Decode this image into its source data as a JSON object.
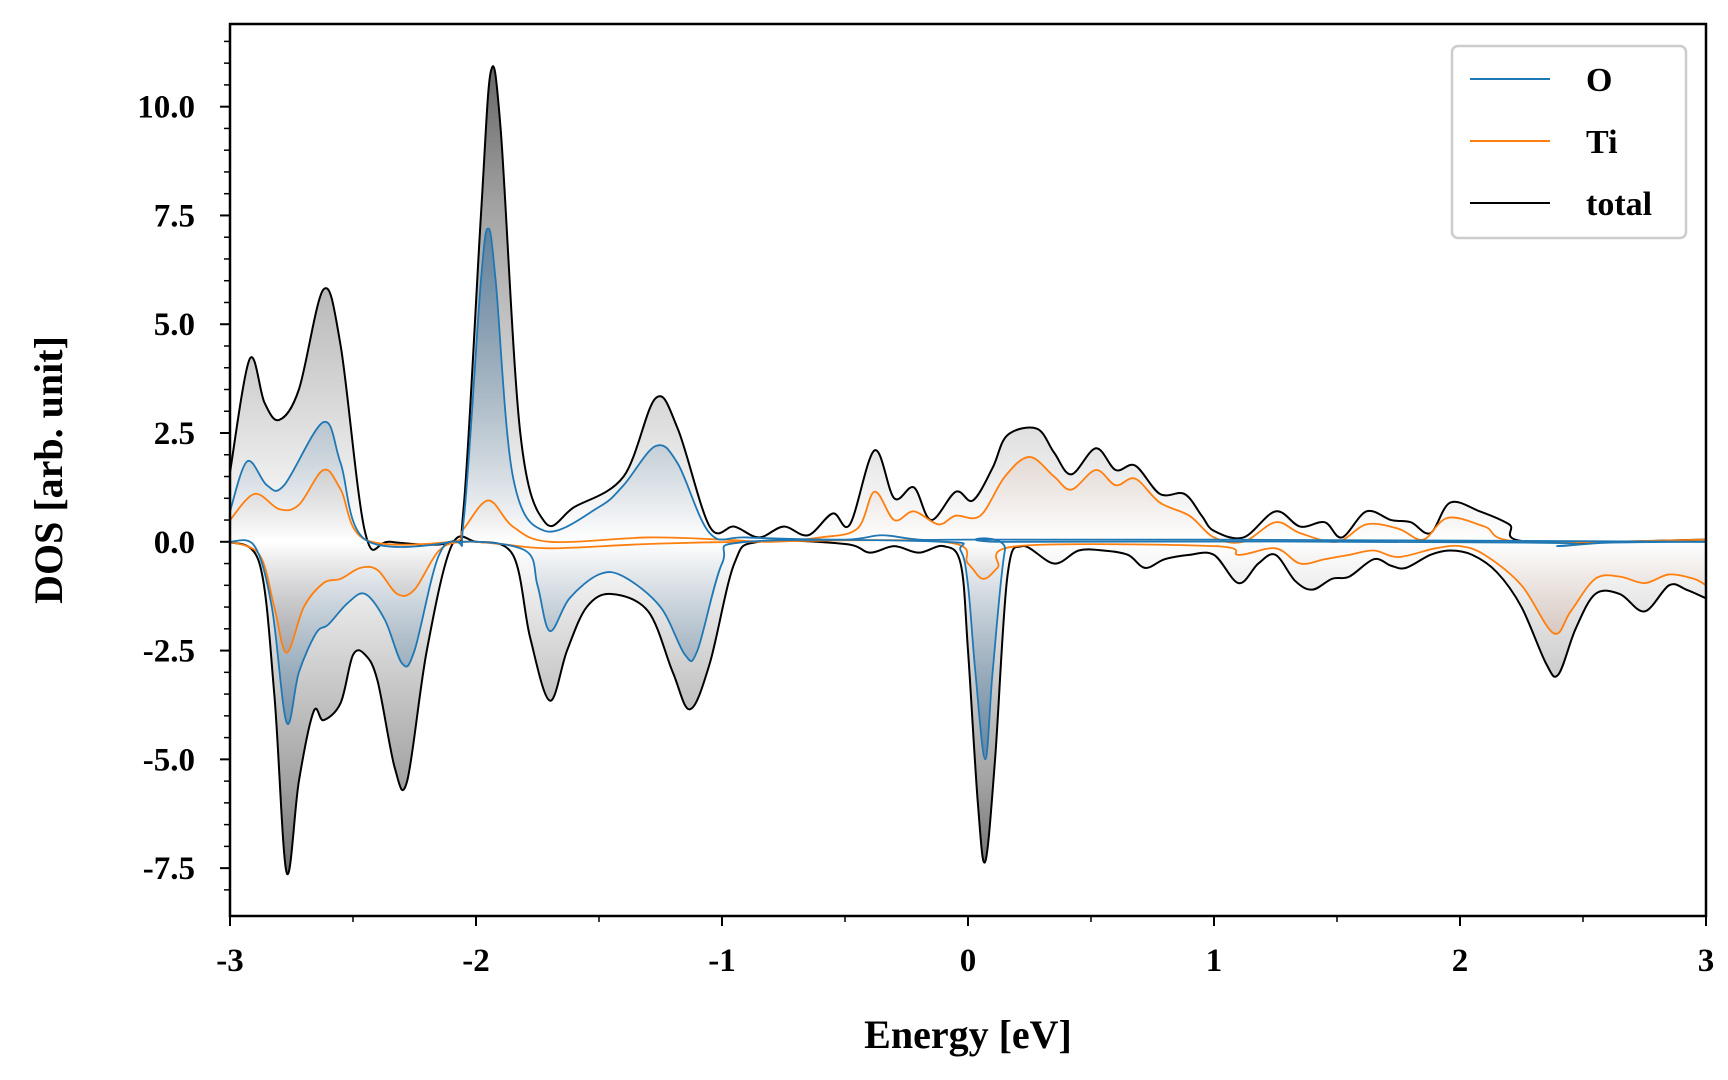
{
  "chart_data": {
    "type": "line",
    "title": "",
    "xlabel": "Energy [eV]",
    "ylabel": "DOS [arb. unit]",
    "xlim": [
      -3,
      3
    ],
    "ylim": [
      -8.6,
      11.9
    ],
    "x_ticks": [
      -3,
      -2,
      -1,
      0,
      1,
      2,
      3
    ],
    "x_tick_labels": [
      "-3",
      "-2",
      "-1",
      "0",
      "1",
      "2",
      "3"
    ],
    "y_ticks": [
      -7.5,
      -5.0,
      -2.5,
      0.0,
      2.5,
      5.0,
      7.5,
      10.0
    ],
    "y_tick_labels": [
      "-7.5",
      "-5.0",
      "-2.5",
      "0.0",
      "2.5",
      "5.0",
      "7.5",
      "10.0"
    ],
    "legend_position": "top-right",
    "grid": false,
    "series": [
      {
        "name": "O",
        "color": "#1f77b4",
        "fill_color": "#1f5f94",
        "up": [
          [
            -3,
            0.7
          ],
          [
            -2.93,
            1.85
          ],
          [
            -2.85,
            1.3
          ],
          [
            -2.78,
            1.3
          ],
          [
            -2.62,
            2.75
          ],
          [
            -2.55,
            1.8
          ],
          [
            -2.45,
            0.05
          ],
          [
            -2.1,
            0.0
          ],
          [
            -2.05,
            0.5
          ],
          [
            -1.98,
            6.0
          ],
          [
            -1.95,
            7.2
          ],
          [
            -1.92,
            6.0
          ],
          [
            -1.85,
            1.5
          ],
          [
            -1.72,
            0.25
          ],
          [
            -1.5,
            0.8
          ],
          [
            -1.4,
            1.3
          ],
          [
            -1.27,
            2.2
          ],
          [
            -1.18,
            1.8
          ],
          [
            -1.05,
            0.2
          ],
          [
            -0.9,
            0.1
          ],
          [
            -0.5,
            0.05
          ],
          [
            -0.35,
            0.15
          ],
          [
            -0.2,
            0.05
          ],
          [
            0.0,
            0.05
          ],
          [
            1.0,
            0.05
          ],
          [
            3,
            0.0
          ]
        ],
        "down": [
          [
            -3,
            0.0
          ],
          [
            -2.9,
            -0.1
          ],
          [
            -2.83,
            -1.5
          ],
          [
            -2.77,
            -4.15
          ],
          [
            -2.72,
            -3.0
          ],
          [
            -2.65,
            -2.1
          ],
          [
            -2.6,
            -1.9
          ],
          [
            -2.52,
            -1.4
          ],
          [
            -2.45,
            -1.2
          ],
          [
            -2.37,
            -1.8
          ],
          [
            -2.3,
            -2.8
          ],
          [
            -2.25,
            -2.5
          ],
          [
            -2.15,
            -0.3
          ],
          [
            -2.05,
            0.0
          ],
          [
            -1.8,
            -0.2
          ],
          [
            -1.75,
            -1.0
          ],
          [
            -1.7,
            -2.05
          ],
          [
            -1.62,
            -1.3
          ],
          [
            -1.5,
            -0.75
          ],
          [
            -1.4,
            -0.8
          ],
          [
            -1.25,
            -1.5
          ],
          [
            -1.15,
            -2.6
          ],
          [
            -1.1,
            -2.5
          ],
          [
            -1.0,
            -0.5
          ],
          [
            -0.9,
            0.0
          ],
          [
            -0.1,
            0.0
          ],
          [
            -0.03,
            -0.2
          ],
          [
            0.0,
            -1.0
          ],
          [
            0.03,
            -3.0
          ],
          [
            0.07,
            -5.0
          ],
          [
            0.1,
            -3.0
          ],
          [
            0.15,
            -0.2
          ],
          [
            0.2,
            0.0
          ],
          [
            2.3,
            -0.02
          ],
          [
            2.4,
            -0.1
          ],
          [
            2.6,
            -0.02
          ],
          [
            3,
            0.0
          ]
        ]
      },
      {
        "name": "Ti",
        "color": "#ff7f0e",
        "fill_color": "#c9805a",
        "up": [
          [
            -3,
            0.5
          ],
          [
            -2.9,
            1.1
          ],
          [
            -2.8,
            0.75
          ],
          [
            -2.72,
            0.85
          ],
          [
            -2.62,
            1.65
          ],
          [
            -2.55,
            1.2
          ],
          [
            -2.45,
            0.05
          ],
          [
            -2.1,
            0.0
          ],
          [
            -2.05,
            0.3
          ],
          [
            -1.95,
            0.95
          ],
          [
            -1.85,
            0.35
          ],
          [
            -1.7,
            0.0
          ],
          [
            -1.3,
            0.1
          ],
          [
            -1.0,
            0.05
          ],
          [
            -0.8,
            0.0
          ],
          [
            -0.6,
            0.1
          ],
          [
            -0.45,
            0.3
          ],
          [
            -0.38,
            1.15
          ],
          [
            -0.3,
            0.5
          ],
          [
            -0.22,
            0.7
          ],
          [
            -0.12,
            0.4
          ],
          [
            -0.05,
            0.6
          ],
          [
            0.05,
            0.6
          ],
          [
            0.15,
            1.5
          ],
          [
            0.25,
            1.95
          ],
          [
            0.35,
            1.5
          ],
          [
            0.42,
            1.2
          ],
          [
            0.52,
            1.65
          ],
          [
            0.6,
            1.3
          ],
          [
            0.68,
            1.45
          ],
          [
            0.78,
            0.9
          ],
          [
            0.9,
            0.6
          ],
          [
            1.0,
            0.1
          ],
          [
            1.12,
            0.0
          ],
          [
            1.25,
            0.45
          ],
          [
            1.35,
            0.2
          ],
          [
            1.5,
            0.0
          ],
          [
            1.62,
            0.4
          ],
          [
            1.75,
            0.3
          ],
          [
            1.85,
            0.05
          ],
          [
            1.95,
            0.55
          ],
          [
            2.1,
            0.35
          ],
          [
            2.25,
            0.0
          ],
          [
            3,
            0.05
          ]
        ],
        "down": [
          [
            -3,
            0.0
          ],
          [
            -2.88,
            -0.3
          ],
          [
            -2.82,
            -1.5
          ],
          [
            -2.77,
            -2.55
          ],
          [
            -2.7,
            -1.5
          ],
          [
            -2.62,
            -0.95
          ],
          [
            -2.55,
            -0.85
          ],
          [
            -2.47,
            -0.6
          ],
          [
            -2.4,
            -0.65
          ],
          [
            -2.32,
            -1.2
          ],
          [
            -2.25,
            -1.1
          ],
          [
            -2.15,
            -0.2
          ],
          [
            -2.05,
            0.0
          ],
          [
            -1.9,
            -0.05
          ],
          [
            -1.7,
            -0.15
          ],
          [
            -1.3,
            -0.05
          ],
          [
            -0.9,
            0.0
          ],
          [
            -0.1,
            0.0
          ],
          [
            0.0,
            -0.5
          ],
          [
            0.06,
            -0.85
          ],
          [
            0.12,
            -0.6
          ],
          [
            0.2,
            -0.1
          ],
          [
            1.0,
            -0.1
          ],
          [
            1.1,
            -0.3
          ],
          [
            1.25,
            -0.15
          ],
          [
            1.35,
            -0.5
          ],
          [
            1.45,
            -0.4
          ],
          [
            1.55,
            -0.3
          ],
          [
            1.65,
            -0.2
          ],
          [
            1.75,
            -0.35
          ],
          [
            1.9,
            -0.15
          ],
          [
            2.0,
            -0.1
          ],
          [
            2.1,
            -0.3
          ],
          [
            2.25,
            -1.0
          ],
          [
            2.38,
            -2.1
          ],
          [
            2.45,
            -1.6
          ],
          [
            2.55,
            -0.85
          ],
          [
            2.65,
            -0.8
          ],
          [
            2.75,
            -0.95
          ],
          [
            2.85,
            -0.75
          ],
          [
            2.95,
            -0.85
          ],
          [
            3,
            -1.0
          ]
        ]
      },
      {
        "name": "total",
        "color": "#000000",
        "fill_color": "#555555",
        "up": [
          [
            -3,
            1.6
          ],
          [
            -2.92,
            4.2
          ],
          [
            -2.86,
            3.2
          ],
          [
            -2.8,
            2.8
          ],
          [
            -2.72,
            3.5
          ],
          [
            -2.62,
            5.8
          ],
          [
            -2.55,
            4.5
          ],
          [
            -2.45,
            0.2
          ],
          [
            -2.35,
            0.0
          ],
          [
            -2.1,
            0.0
          ],
          [
            -2.05,
            0.8
          ],
          [
            -1.98,
            7.5
          ],
          [
            -1.94,
            10.8
          ],
          [
            -1.9,
            9.5
          ],
          [
            -1.82,
            2.5
          ],
          [
            -1.72,
            0.45
          ],
          [
            -1.6,
            0.8
          ],
          [
            -1.4,
            1.5
          ],
          [
            -1.27,
            3.3
          ],
          [
            -1.18,
            2.6
          ],
          [
            -1.05,
            0.35
          ],
          [
            -0.95,
            0.35
          ],
          [
            -0.85,
            0.1
          ],
          [
            -0.75,
            0.35
          ],
          [
            -0.65,
            0.15
          ],
          [
            -0.55,
            0.65
          ],
          [
            -0.48,
            0.4
          ],
          [
            -0.38,
            2.1
          ],
          [
            -0.3,
            1.0
          ],
          [
            -0.22,
            1.25
          ],
          [
            -0.15,
            0.5
          ],
          [
            -0.05,
            1.15
          ],
          [
            0.02,
            0.95
          ],
          [
            0.1,
            1.7
          ],
          [
            0.16,
            2.45
          ],
          [
            0.28,
            2.6
          ],
          [
            0.35,
            2.05
          ],
          [
            0.42,
            1.55
          ],
          [
            0.52,
            2.15
          ],
          [
            0.6,
            1.65
          ],
          [
            0.68,
            1.75
          ],
          [
            0.78,
            1.1
          ],
          [
            0.88,
            1.1
          ],
          [
            0.95,
            0.6
          ],
          [
            1.0,
            0.25
          ],
          [
            1.12,
            0.1
          ],
          [
            1.25,
            0.7
          ],
          [
            1.35,
            0.35
          ],
          [
            1.45,
            0.45
          ],
          [
            1.52,
            0.1
          ],
          [
            1.62,
            0.7
          ],
          [
            1.72,
            0.5
          ],
          [
            1.8,
            0.45
          ],
          [
            1.88,
            0.2
          ],
          [
            1.96,
            0.9
          ],
          [
            2.08,
            0.7
          ],
          [
            2.2,
            0.4
          ],
          [
            2.28,
            0.0
          ],
          [
            3,
            0.05
          ]
        ],
        "down": [
          [
            -3,
            0.0
          ],
          [
            -2.88,
            -0.5
          ],
          [
            -2.82,
            -3.5
          ],
          [
            -2.77,
            -7.6
          ],
          [
            -2.72,
            -5.5
          ],
          [
            -2.66,
            -3.9
          ],
          [
            -2.62,
            -4.1
          ],
          [
            -2.55,
            -3.7
          ],
          [
            -2.5,
            -2.6
          ],
          [
            -2.45,
            -2.6
          ],
          [
            -2.4,
            -3.2
          ],
          [
            -2.33,
            -5.2
          ],
          [
            -2.28,
            -5.5
          ],
          [
            -2.2,
            -2.5
          ],
          [
            -2.1,
            -0.1
          ],
          [
            -2.0,
            0.0
          ],
          [
            -1.85,
            -0.3
          ],
          [
            -1.78,
            -2.2
          ],
          [
            -1.7,
            -3.65
          ],
          [
            -1.63,
            -2.5
          ],
          [
            -1.55,
            -1.5
          ],
          [
            -1.45,
            -1.2
          ],
          [
            -1.3,
            -1.6
          ],
          [
            -1.2,
            -3.0
          ],
          [
            -1.13,
            -3.85
          ],
          [
            -1.05,
            -2.8
          ],
          [
            -0.95,
            -0.5
          ],
          [
            -0.85,
            0.0
          ],
          [
            -0.5,
            -0.05
          ],
          [
            -0.4,
            -0.25
          ],
          [
            -0.3,
            -0.1
          ],
          [
            -0.2,
            -0.25
          ],
          [
            -0.1,
            -0.1
          ],
          [
            -0.03,
            -0.5
          ],
          [
            0.0,
            -2.5
          ],
          [
            0.04,
            -6.0
          ],
          [
            0.07,
            -7.35
          ],
          [
            0.11,
            -5.0
          ],
          [
            0.16,
            -0.8
          ],
          [
            0.22,
            -0.1
          ],
          [
            0.35,
            -0.5
          ],
          [
            0.45,
            -0.2
          ],
          [
            0.55,
            -0.2
          ],
          [
            0.65,
            -0.3
          ],
          [
            0.72,
            -0.6
          ],
          [
            0.8,
            -0.4
          ],
          [
            0.9,
            -0.3
          ],
          [
            1.0,
            -0.3
          ],
          [
            1.1,
            -0.95
          ],
          [
            1.18,
            -0.5
          ],
          [
            1.25,
            -0.3
          ],
          [
            1.33,
            -0.9
          ],
          [
            1.4,
            -1.1
          ],
          [
            1.48,
            -0.85
          ],
          [
            1.55,
            -0.8
          ],
          [
            1.65,
            -0.4
          ],
          [
            1.72,
            -0.55
          ],
          [
            1.78,
            -0.6
          ],
          [
            1.88,
            -0.3
          ],
          [
            1.96,
            -0.2
          ],
          [
            2.05,
            -0.3
          ],
          [
            2.15,
            -0.7
          ],
          [
            2.25,
            -1.5
          ],
          [
            2.35,
            -2.8
          ],
          [
            2.4,
            -3.05
          ],
          [
            2.47,
            -2.0
          ],
          [
            2.55,
            -1.2
          ],
          [
            2.65,
            -1.2
          ],
          [
            2.75,
            -1.6
          ],
          [
            2.85,
            -1.0
          ],
          [
            2.92,
            -1.1
          ],
          [
            3,
            -1.3
          ]
        ]
      }
    ]
  }
}
